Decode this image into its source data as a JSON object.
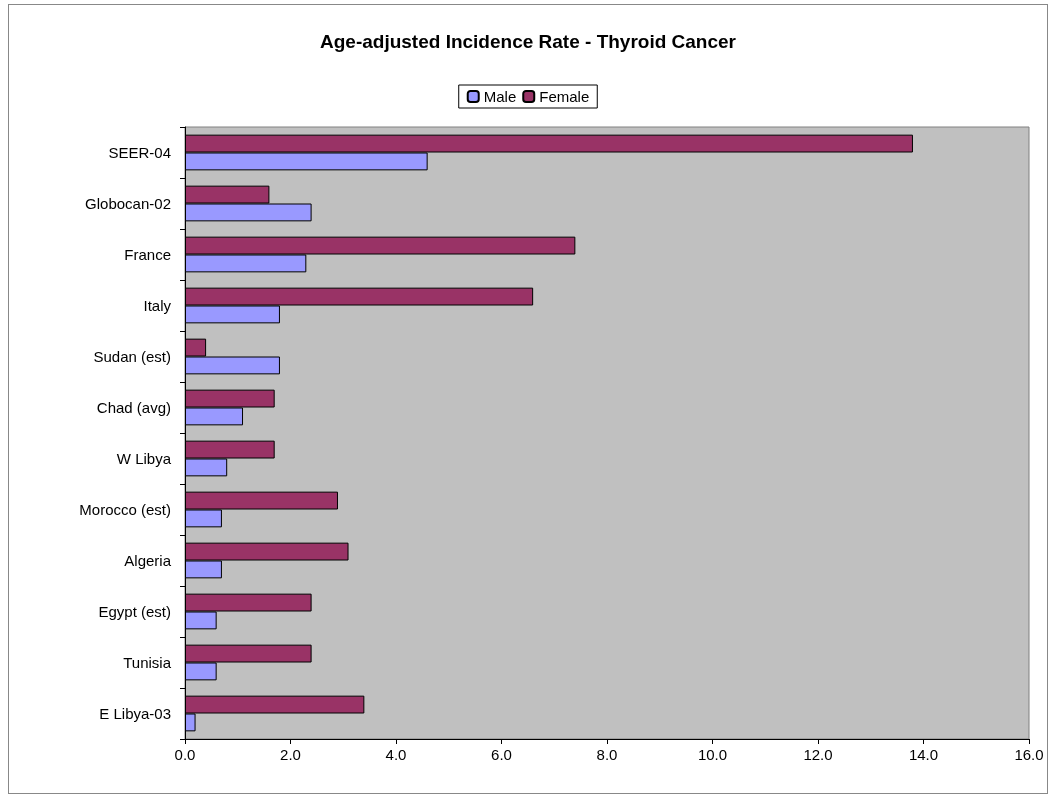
{
  "chart_data": {
    "type": "bar",
    "title": "Age-adjusted Incidence Rate - Thyroid Cancer",
    "orientation": "horizontal",
    "categories": [
      "SEER-04",
      "Globocan-02",
      "France",
      "Italy",
      "Sudan (est)",
      "Chad (avg)",
      "W Libya",
      "Morocco (est)",
      "Algeria",
      "Egypt (est)",
      "Tunisia",
      "E Libya-03"
    ],
    "series": [
      {
        "name": "Male",
        "color": "#9999ff",
        "values": [
          4.6,
          2.4,
          2.3,
          1.8,
          1.8,
          1.1,
          0.8,
          0.7,
          0.7,
          0.6,
          0.6,
          0.2
        ]
      },
      {
        "name": "Female",
        "color": "#993366",
        "values": [
          13.8,
          1.6,
          7.4,
          6.6,
          0.4,
          1.7,
          1.7,
          2.9,
          3.1,
          2.4,
          2.4,
          3.4
        ]
      }
    ],
    "xlim": [
      0,
      16
    ],
    "xticks": [
      {
        "value": 0,
        "label": "0.0"
      },
      {
        "value": 2,
        "label": "2.0"
      },
      {
        "value": 4,
        "label": "4.0"
      },
      {
        "value": 6,
        "label": "6.0"
      },
      {
        "value": 8,
        "label": "8.0"
      },
      {
        "value": 10,
        "label": "10.0"
      },
      {
        "value": 12,
        "label": "12.0"
      },
      {
        "value": 14,
        "label": "14.0"
      },
      {
        "value": 16,
        "label": "16.0"
      }
    ],
    "grid": false,
    "legend": "top"
  }
}
